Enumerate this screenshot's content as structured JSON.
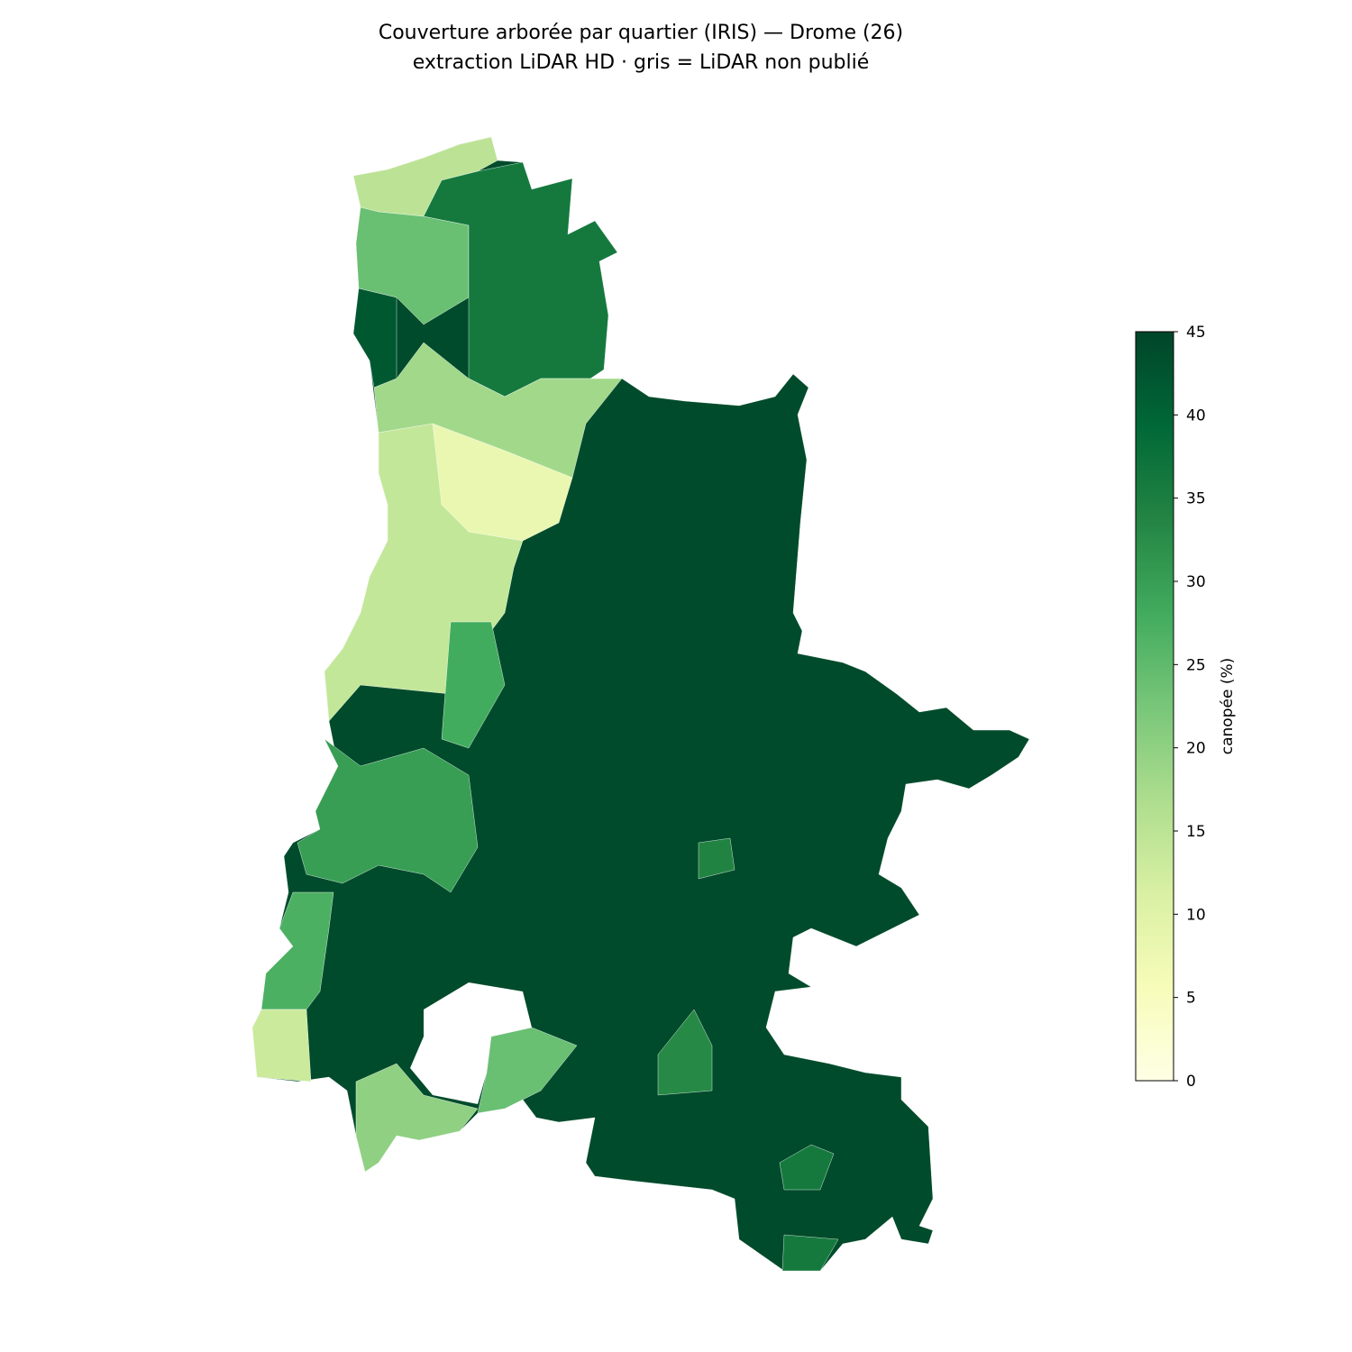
{
  "chart_data": {
    "type": "choropleth",
    "title": "Couverture arborée par quartier (IRIS) — Drome (26)",
    "subtitle": "extraction LiDAR HD · gris = LiDAR non publié",
    "colormap": "YlGn",
    "values": [
      44,
      15,
      24,
      36,
      42,
      18,
      8,
      14,
      28,
      30,
      27,
      13,
      20,
      24,
      36,
      36,
      33,
      34
    ],
    "clim": [
      0,
      45
    ],
    "colorbar_ticks": [
      0,
      5,
      10,
      15,
      20,
      25,
      30,
      35,
      40,
      45
    ],
    "colorbar_label": "canopée (%)"
  }
}
